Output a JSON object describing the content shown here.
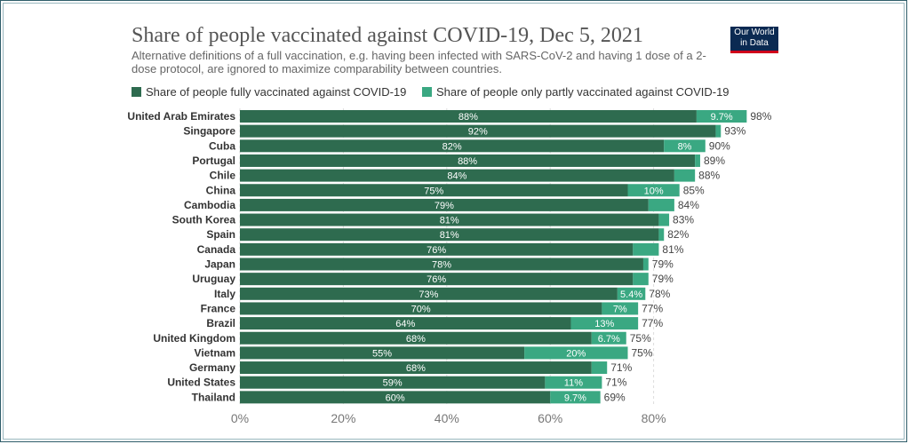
{
  "header": {
    "title": "Share of people vaccinated against COVID-19, Dec 5, 2021",
    "subtitle": "Alternative definitions of a full vaccination, e.g. having been infected with SARS-CoV-2 and having 1 dose of a 2-dose protocol, are ignored to maximize comparability between countries.",
    "logo_line1": "Our World",
    "logo_line2": "in Data"
  },
  "legend": {
    "full_label": "Share of people fully vaccinated against COVID-19",
    "partial_label": "Share of people only partly vaccinated against COVID-19"
  },
  "colors": {
    "full": "#2e6b4f",
    "partial": "#3aa882",
    "logo_bg": "#0b2a52",
    "logo_accent": "#d0021b"
  },
  "chart_data": {
    "type": "bar",
    "orientation": "horizontal",
    "stacked": true,
    "title": "Share of people vaccinated against COVID-19, Dec 5, 2021",
    "xlabel": "",
    "ylabel": "",
    "xlim": [
      0,
      100
    ],
    "x_ticks": [
      0,
      20,
      40,
      60,
      80
    ],
    "x_tick_labels": [
      "0%",
      "20%",
      "40%",
      "60%",
      "80%"
    ],
    "categories": [
      "United Arab Emirates",
      "Singapore",
      "Cuba",
      "Portugal",
      "Chile",
      "China",
      "Cambodia",
      "South Korea",
      "Spain",
      "Canada",
      "Japan",
      "Uruguay",
      "Italy",
      "France",
      "Brazil",
      "United Kingdom",
      "Vietnam",
      "Germany",
      "United States",
      "Thailand"
    ],
    "series": [
      {
        "name": "Share of people fully vaccinated against COVID-19",
        "values": [
          88.3,
          92,
          82,
          88,
          84,
          75,
          79,
          81,
          81,
          76,
          78,
          76,
          73,
          70,
          64,
          68,
          55,
          68,
          59,
          60
        ],
        "labels": [
          "88%",
          "92%",
          "82%",
          "88%",
          "84%",
          "75%",
          "79%",
          "81%",
          "81%",
          "76%",
          "78%",
          "76%",
          "73%",
          "70%",
          "64%",
          "68%",
          "55%",
          "68%",
          "59%",
          "60%"
        ]
      },
      {
        "name": "Share of people only partly vaccinated against COVID-19",
        "values": [
          9.7,
          1,
          8,
          1,
          4,
          10,
          5,
          2,
          1,
          5,
          1,
          3,
          5.4,
          7,
          13,
          6.7,
          20,
          3,
          11,
          9.7
        ],
        "labels": [
          "9.7%",
          "",
          "8%",
          "",
          "",
          "10%",
          "",
          "",
          "",
          "",
          "",
          "",
          "5.4%",
          "7%",
          "13%",
          "6.7%",
          "20%",
          "",
          "11%",
          "9.7%"
        ]
      }
    ],
    "totals": [
      "98%",
      "93%",
      "90%",
      "89%",
      "88%",
      "85%",
      "84%",
      "83%",
      "82%",
      "81%",
      "79%",
      "79%",
      "78%",
      "77%",
      "77%",
      "75%",
      "75%",
      "71%",
      "71%",
      "69%"
    ]
  }
}
